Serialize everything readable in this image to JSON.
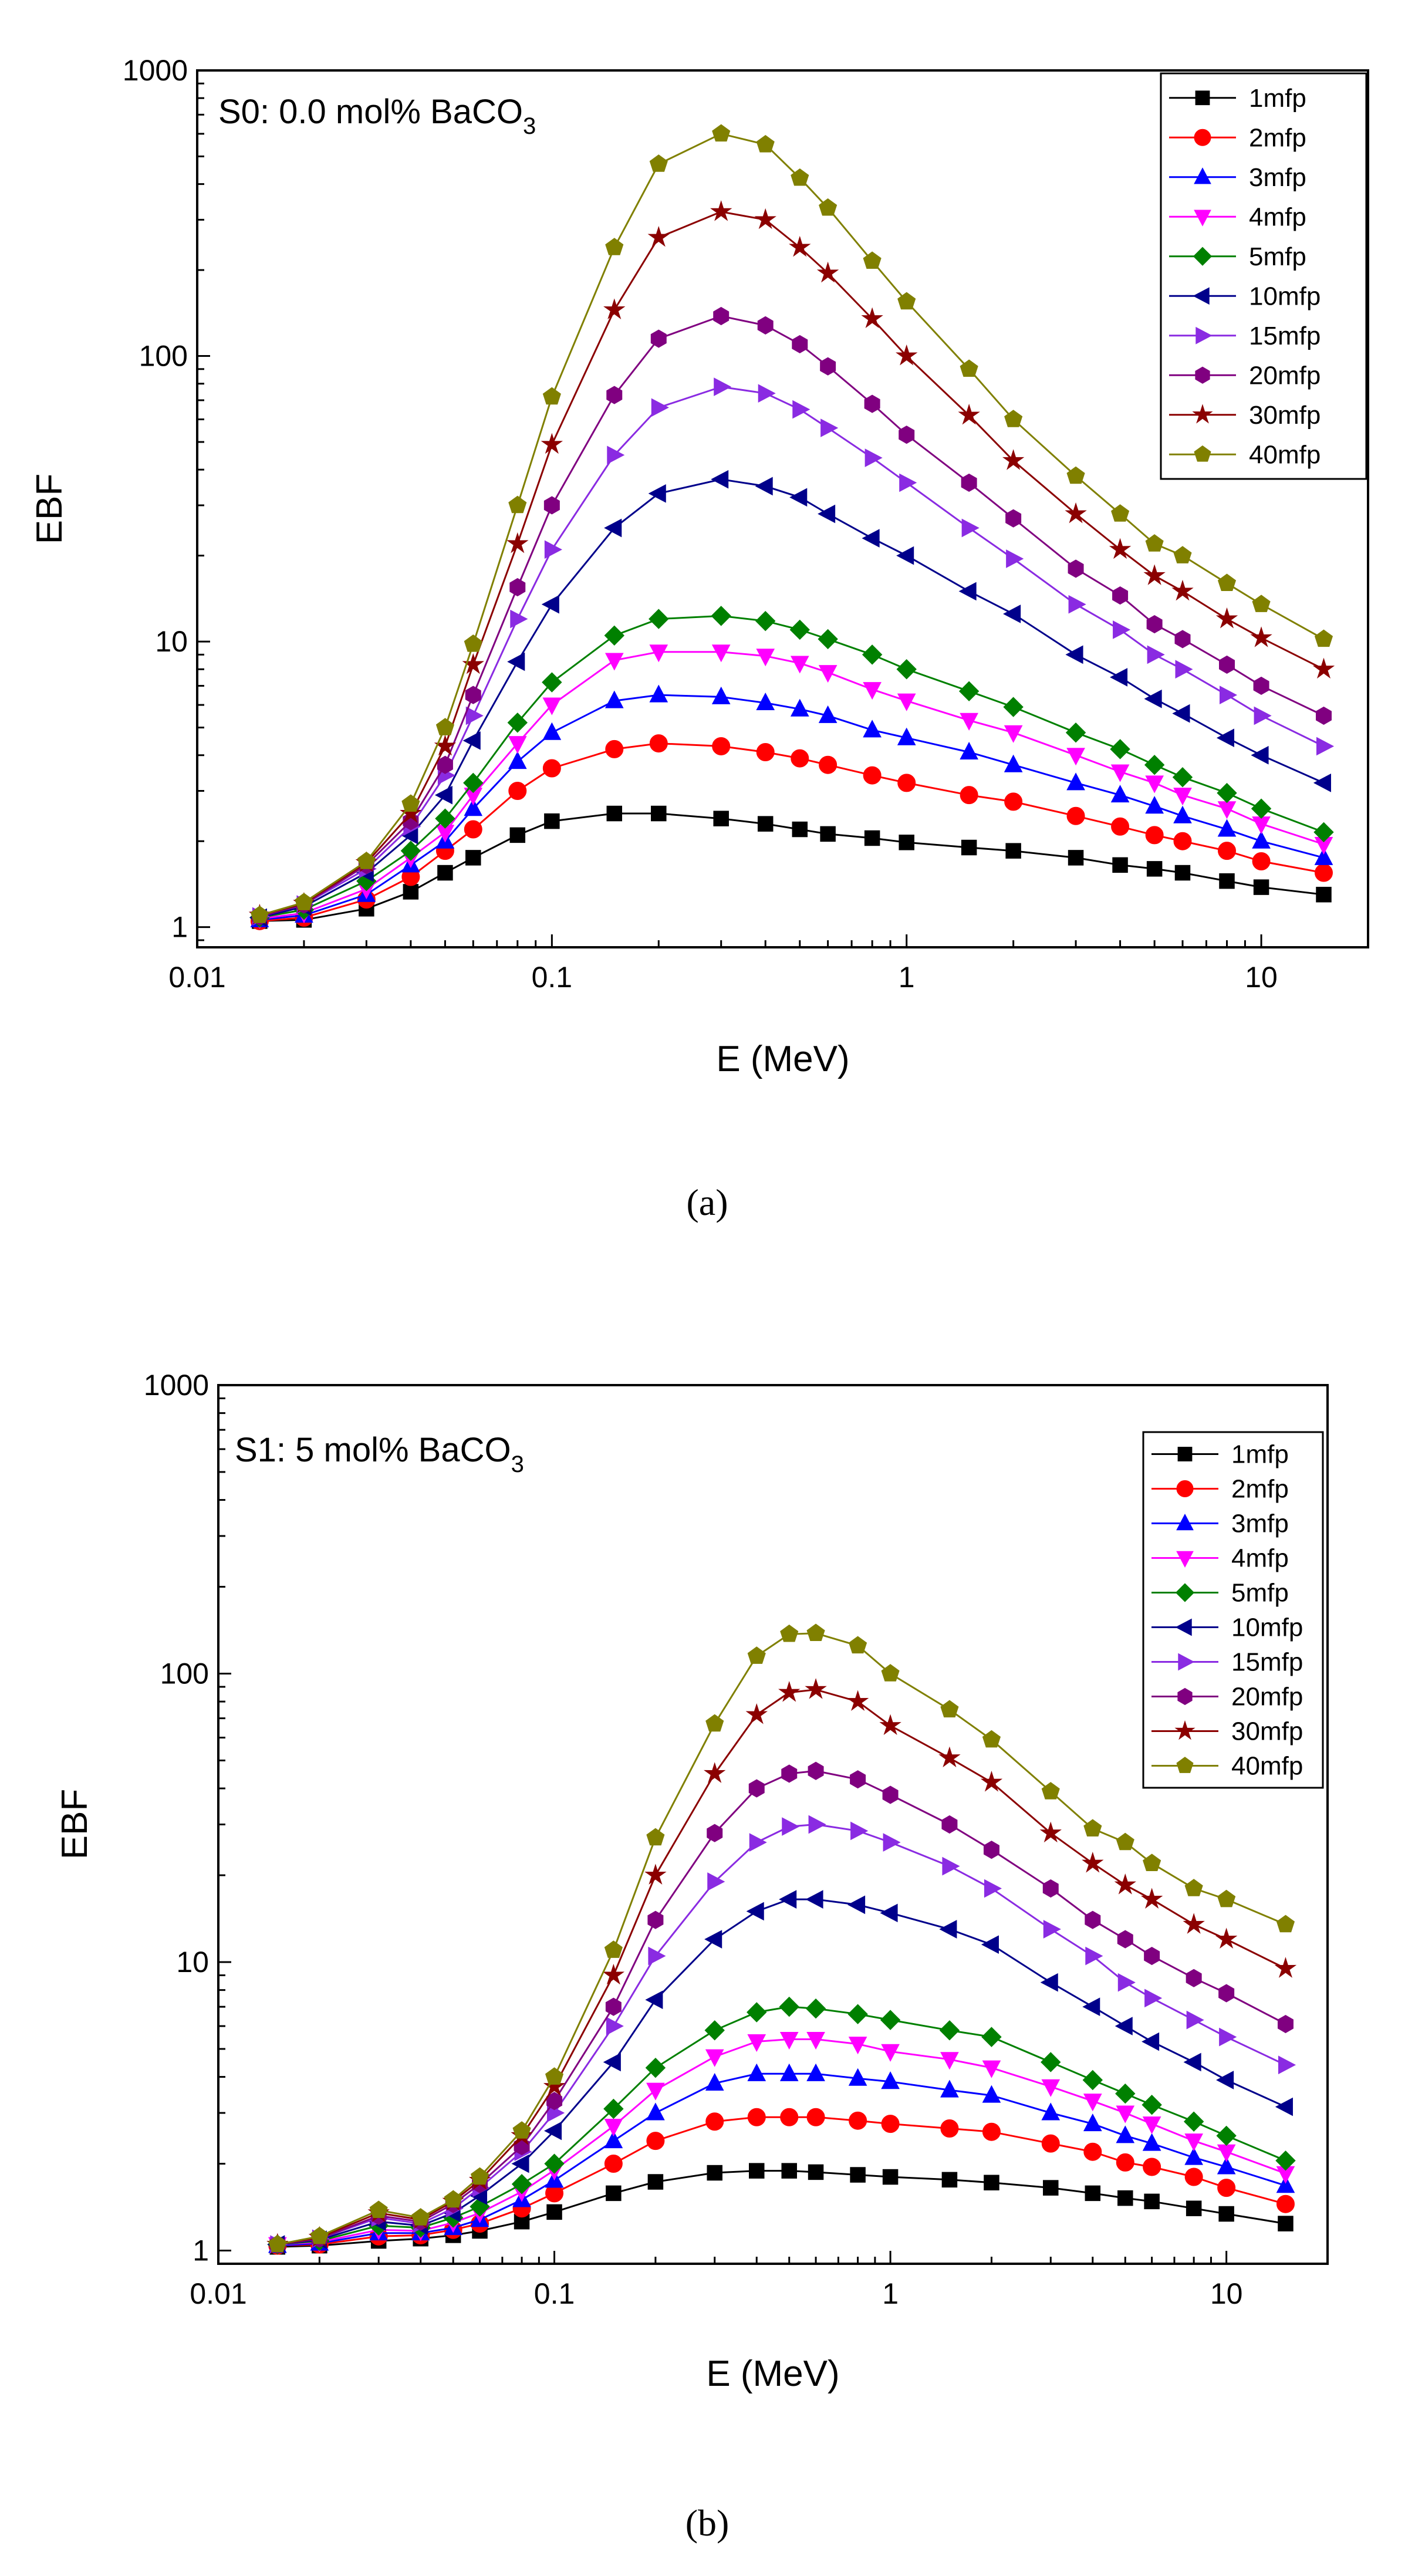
{
  "figure": {
    "captions": [
      "(a)",
      "(b)"
    ]
  },
  "chart_data": [
    {
      "type": "line",
      "panel_label": "(a)",
      "title": "S0: 0.0 mol% BaCO",
      "title_subscript": "3",
      "xlabel": "E (MeV)",
      "ylabel": "EBF",
      "xscale": "log",
      "yscale": "log",
      "xlim": [
        0.01,
        20
      ],
      "ylim": [
        0.85,
        1000
      ],
      "xticks": [
        {
          "v": 0.01,
          "label": "0.01"
        },
        {
          "v": 0.1,
          "label": "0.1"
        },
        {
          "v": 1,
          "label": "1"
        },
        {
          "v": 10,
          "label": "10"
        }
      ],
      "yticks": [
        {
          "v": 1,
          "label": "1"
        },
        {
          "v": 10,
          "label": "10"
        },
        {
          "v": 100,
          "label": "100"
        },
        {
          "v": 1000,
          "label": "1000"
        }
      ],
      "legend_position": "top-right",
      "x": [
        0.015,
        0.02,
        0.03,
        0.04,
        0.05,
        0.06,
        0.08,
        0.1,
        0.15,
        0.2,
        0.3,
        0.4,
        0.5,
        0.6,
        0.8,
        1,
        1.5,
        2,
        3,
        4,
        5,
        6,
        8,
        10,
        15
      ],
      "series": [
        {
          "name": "1mfp",
          "color": "#000000",
          "marker": "square",
          "values": [
            1.05,
            1.06,
            1.16,
            1.33,
            1.55,
            1.75,
            2.1,
            2.35,
            2.5,
            2.5,
            2.4,
            2.3,
            2.2,
            2.12,
            2.05,
            1.98,
            1.9,
            1.85,
            1.75,
            1.65,
            1.6,
            1.55,
            1.45,
            1.38,
            1.3
          ]
        },
        {
          "name": "2mfp",
          "color": "#ff0000",
          "marker": "circle",
          "values": [
            1.05,
            1.08,
            1.25,
            1.5,
            1.85,
            2.2,
            3.0,
            3.6,
            4.2,
            4.4,
            4.3,
            4.1,
            3.9,
            3.7,
            3.4,
            3.2,
            2.9,
            2.75,
            2.45,
            2.25,
            2.1,
            2.0,
            1.85,
            1.7,
            1.55
          ]
        },
        {
          "name": "3mfp",
          "color": "#0000ff",
          "marker": "triangle-up",
          "values": [
            1.06,
            1.1,
            1.3,
            1.65,
            2.0,
            2.6,
            3.8,
            4.8,
            6.2,
            6.5,
            6.4,
            6.1,
            5.8,
            5.5,
            4.9,
            4.6,
            4.1,
            3.7,
            3.2,
            2.9,
            2.65,
            2.45,
            2.2,
            2.0,
            1.75
          ]
        },
        {
          "name": "4mfp",
          "color": "#ff00ff",
          "marker": "triangle-down",
          "values": [
            1.07,
            1.12,
            1.36,
            1.75,
            2.15,
            2.9,
            4.4,
            6.0,
            8.6,
            9.2,
            9.2,
            8.9,
            8.4,
            7.8,
            6.8,
            6.2,
            5.3,
            4.8,
            4.0,
            3.5,
            3.2,
            2.9,
            2.6,
            2.3,
            1.95
          ]
        },
        {
          "name": "5mfp",
          "color": "#008000",
          "marker": "diamond",
          "values": [
            1.08,
            1.15,
            1.45,
            1.85,
            2.4,
            3.2,
            5.2,
            7.2,
            10.5,
            12.0,
            12.3,
            11.8,
            11.0,
            10.2,
            9.0,
            8.0,
            6.7,
            5.9,
            4.8,
            4.2,
            3.7,
            3.35,
            2.95,
            2.6,
            2.15
          ]
        },
        {
          "name": "10mfp",
          "color": "#00008b",
          "marker": "triangle-left",
          "values": [
            1.08,
            1.18,
            1.55,
            2.1,
            2.9,
            4.5,
            8.5,
            13.5,
            25,
            33,
            37,
            35,
            32,
            28,
            23,
            20,
            15,
            12.5,
            9.0,
            7.5,
            6.3,
            5.6,
            4.6,
            4.0,
            3.2
          ]
        },
        {
          "name": "15mfp",
          "color": "#8a2be2",
          "marker": "triangle-right",
          "values": [
            1.09,
            1.2,
            1.6,
            2.25,
            3.4,
            5.5,
            12,
            21,
            45,
            66,
            78,
            74,
            65,
            56,
            44,
            36,
            25,
            19.5,
            13.5,
            11,
            9.0,
            8.0,
            6.5,
            5.5,
            4.3
          ]
        },
        {
          "name": "20mfp",
          "color": "#800080",
          "marker": "hexagon",
          "values": [
            1.09,
            1.2,
            1.65,
            2.35,
            3.7,
            6.5,
            15.5,
            30,
            73,
            115,
            138,
            128,
            110,
            92,
            68,
            53,
            36,
            27,
            18,
            14.5,
            11.5,
            10.2,
            8.3,
            7.0,
            5.5
          ]
        },
        {
          "name": "30mfp",
          "color": "#8b0000",
          "marker": "star",
          "values": [
            1.1,
            1.21,
            1.68,
            2.5,
            4.3,
            8.3,
            22,
            49,
            145,
            260,
            320,
            300,
            240,
            195,
            135,
            100,
            62,
            43,
            28,
            21,
            17,
            15,
            12,
            10.3,
            8.0
          ]
        },
        {
          "name": "40mfp",
          "color": "#808000",
          "marker": "pentagon",
          "values": [
            1.1,
            1.22,
            1.7,
            2.7,
            5.0,
            9.8,
            30,
            72,
            240,
            470,
            600,
            550,
            420,
            330,
            215,
            155,
            90,
            60,
            38,
            28,
            22,
            20,
            16,
            13.5,
            10.2
          ]
        }
      ]
    },
    {
      "type": "line",
      "panel_label": "(b)",
      "title": "S1: 5 mol% BaCO",
      "title_subscript": "3",
      "xlabel": "E (MeV)",
      "ylabel": "EBF",
      "xscale": "log",
      "yscale": "log",
      "xlim": [
        0.01,
        20
      ],
      "ylim": [
        0.9,
        1000
      ],
      "xticks": [
        {
          "v": 0.01,
          "label": "0.01"
        },
        {
          "v": 0.1,
          "label": "0.1"
        },
        {
          "v": 1,
          "label": "1"
        },
        {
          "v": 10,
          "label": "10"
        }
      ],
      "yticks": [
        {
          "v": 1,
          "label": "1"
        },
        {
          "v": 10,
          "label": "10"
        },
        {
          "v": 100,
          "label": "100"
        },
        {
          "v": 1000,
          "label": "1000"
        }
      ],
      "legend_position": "top-right",
      "x": [
        0.015,
        0.02,
        0.03,
        0.04,
        0.05,
        0.06,
        0.08,
        0.1,
        0.15,
        0.2,
        0.3,
        0.4,
        0.5,
        0.6,
        0.8,
        1,
        1.5,
        2,
        3,
        4,
        5,
        6,
        8,
        10,
        15
      ],
      "series": [
        {
          "name": "1mfp",
          "color": "#000000",
          "marker": "square",
          "values": [
            1.03,
            1.04,
            1.08,
            1.1,
            1.13,
            1.17,
            1.26,
            1.36,
            1.58,
            1.73,
            1.86,
            1.89,
            1.89,
            1.87,
            1.83,
            1.8,
            1.76,
            1.72,
            1.65,
            1.58,
            1.52,
            1.48,
            1.4,
            1.34,
            1.24
          ]
        },
        {
          "name": "2mfp",
          "color": "#ff0000",
          "marker": "circle",
          "values": [
            1.04,
            1.05,
            1.12,
            1.13,
            1.18,
            1.24,
            1.4,
            1.58,
            2.0,
            2.4,
            2.8,
            2.9,
            2.9,
            2.9,
            2.82,
            2.75,
            2.65,
            2.58,
            2.35,
            2.2,
            2.02,
            1.95,
            1.8,
            1.65,
            1.45
          ]
        },
        {
          "name": "3mfp",
          "color": "#0000ff",
          "marker": "triangle-up",
          "values": [
            1.04,
            1.06,
            1.15,
            1.15,
            1.2,
            1.28,
            1.5,
            1.75,
            2.4,
            3.0,
            3.8,
            4.1,
            4.1,
            4.1,
            3.95,
            3.85,
            3.6,
            3.45,
            3.0,
            2.75,
            2.5,
            2.35,
            2.1,
            1.95,
            1.68
          ]
        },
        {
          "name": "4mfp",
          "color": "#ff00ff",
          "marker": "triangle-down",
          "values": [
            1.05,
            1.07,
            1.18,
            1.17,
            1.25,
            1.35,
            1.6,
            1.9,
            2.7,
            3.6,
            4.7,
            5.3,
            5.4,
            5.4,
            5.2,
            4.9,
            4.6,
            4.3,
            3.7,
            3.3,
            3.0,
            2.75,
            2.4,
            2.2,
            1.85
          ]
        },
        {
          "name": "5mfp",
          "color": "#008000",
          "marker": "diamond",
          "values": [
            1.05,
            1.08,
            1.22,
            1.2,
            1.3,
            1.42,
            1.7,
            2.0,
            3.1,
            4.3,
            5.8,
            6.7,
            7.0,
            6.9,
            6.6,
            6.3,
            5.8,
            5.5,
            4.5,
            3.9,
            3.5,
            3.2,
            2.8,
            2.5,
            2.05
          ]
        },
        {
          "name": "10mfp",
          "color": "#00008b",
          "marker": "triangle-left",
          "values": [
            1.05,
            1.09,
            1.26,
            1.22,
            1.35,
            1.55,
            2.0,
            2.6,
            4.5,
            7.4,
            12,
            15,
            16.5,
            16.5,
            15.8,
            14.8,
            13,
            11.5,
            8.5,
            7.0,
            6.0,
            5.3,
            4.5,
            3.9,
            3.15
          ]
        },
        {
          "name": "15mfp",
          "color": "#8a2be2",
          "marker": "triangle-right",
          "values": [
            1.05,
            1.1,
            1.3,
            1.24,
            1.4,
            1.65,
            2.2,
            3.0,
            6.0,
            10.5,
            19,
            26,
            29.5,
            30,
            28.5,
            26,
            21.5,
            18,
            13,
            10.5,
            8.5,
            7.5,
            6.3,
            5.5,
            4.4
          ]
        },
        {
          "name": "20mfp",
          "color": "#800080",
          "marker": "hexagon",
          "values": [
            1.05,
            1.1,
            1.32,
            1.26,
            1.45,
            1.7,
            2.3,
            3.3,
            7.0,
            14,
            28,
            40,
            45,
            46,
            43,
            38,
            30,
            24.5,
            18,
            14,
            12,
            10.5,
            8.8,
            7.8,
            6.1
          ]
        },
        {
          "name": "30mfp",
          "color": "#8b0000",
          "marker": "star",
          "values": [
            1.05,
            1.11,
            1.35,
            1.28,
            1.48,
            1.75,
            2.5,
            3.7,
            9.0,
            20,
            45,
            72,
            86,
            88,
            80,
            66,
            51,
            42,
            28,
            22,
            18.5,
            16.5,
            13.5,
            12,
            9.5
          ]
        },
        {
          "name": "40mfp",
          "color": "#808000",
          "marker": "pentagon",
          "values": [
            1.05,
            1.12,
            1.38,
            1.3,
            1.5,
            1.8,
            2.6,
            4.0,
            11,
            27,
            67,
            115,
            137,
            138,
            125,
            100,
            75,
            59,
            39,
            29,
            26,
            22,
            18,
            16.5,
            13.5
          ]
        }
      ]
    }
  ]
}
